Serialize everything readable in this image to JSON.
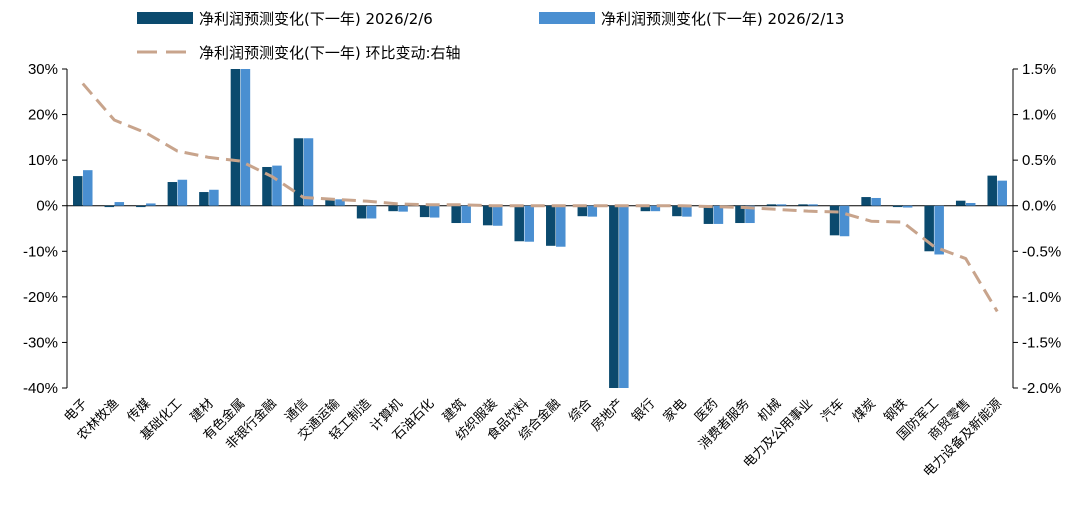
{
  "chart_data": {
    "type": "bar",
    "categories": [
      "电子",
      "农林牧渔",
      "传媒",
      "基础化工",
      "建材",
      "有色金属",
      "非银行金融",
      "通信",
      "交通运输",
      "轻工制造",
      "计算机",
      "石油石化",
      "建筑",
      "纺织服装",
      "食品饮料",
      "综合金融",
      "综合",
      "房地产",
      "银行",
      "家电",
      "医药",
      "消费者服务",
      "机械",
      "电力及公用事业",
      "汽车",
      "煤炭",
      "钢铁",
      "国防军工",
      "商贸零售",
      "电力设备及新能源"
    ],
    "series": [
      {
        "name": "净利润预测变化(下一年) 2026/2/6",
        "axis": "left",
        "kind": "bar",
        "color": "#0b4a6e",
        "values": [
          6.5,
          -0.3,
          -0.3,
          5.2,
          3.0,
          30.0,
          8.5,
          14.8,
          1.3,
          -2.8,
          -1.2,
          -2.5,
          -3.8,
          -4.3,
          -7.8,
          -8.8,
          -2.3,
          -40.0,
          -1.2,
          -2.3,
          -4.0,
          -3.8,
          0.3,
          0.3,
          -6.5,
          1.9,
          -0.3,
          -10.0,
          1.1,
          6.6
        ]
      },
      {
        "name": "净利润预测变化(下一年) 2026/2/13",
        "axis": "left",
        "kind": "bar",
        "color": "#4a8fd1",
        "values": [
          7.8,
          0.8,
          0.5,
          5.7,
          3.5,
          30.0,
          8.8,
          14.8,
          1.4,
          -2.8,
          -1.3,
          -2.6,
          -3.8,
          -4.4,
          -7.9,
          -9.0,
          -2.4,
          -40.0,
          -1.2,
          -2.4,
          -4.0,
          -3.8,
          0.3,
          0.3,
          -6.7,
          1.7,
          -0.4,
          -10.7,
          0.6,
          5.5
        ]
      },
      {
        "name": "净利润预测变化(下一年) 环比变动:右轴",
        "axis": "right",
        "kind": "line",
        "color": "#c8a48c",
        "values": [
          1.34,
          0.94,
          0.8,
          0.6,
          0.53,
          0.49,
          0.32,
          0.09,
          0.07,
          0.05,
          0.02,
          0.01,
          0.01,
          0.0,
          0.0,
          0.0,
          0.0,
          0.0,
          0.0,
          0.0,
          -0.01,
          -0.02,
          -0.04,
          -0.06,
          -0.07,
          -0.17,
          -0.18,
          -0.45,
          -0.58,
          -1.16
        ]
      }
    ],
    "y_left": {
      "min": -40,
      "max": 30,
      "step": 10,
      "format": "pct0"
    },
    "y_right": {
      "min": -2.0,
      "max": 1.5,
      "step": 0.5,
      "format": "pct1"
    },
    "legend": {
      "placement": "top"
    },
    "grid": false
  }
}
